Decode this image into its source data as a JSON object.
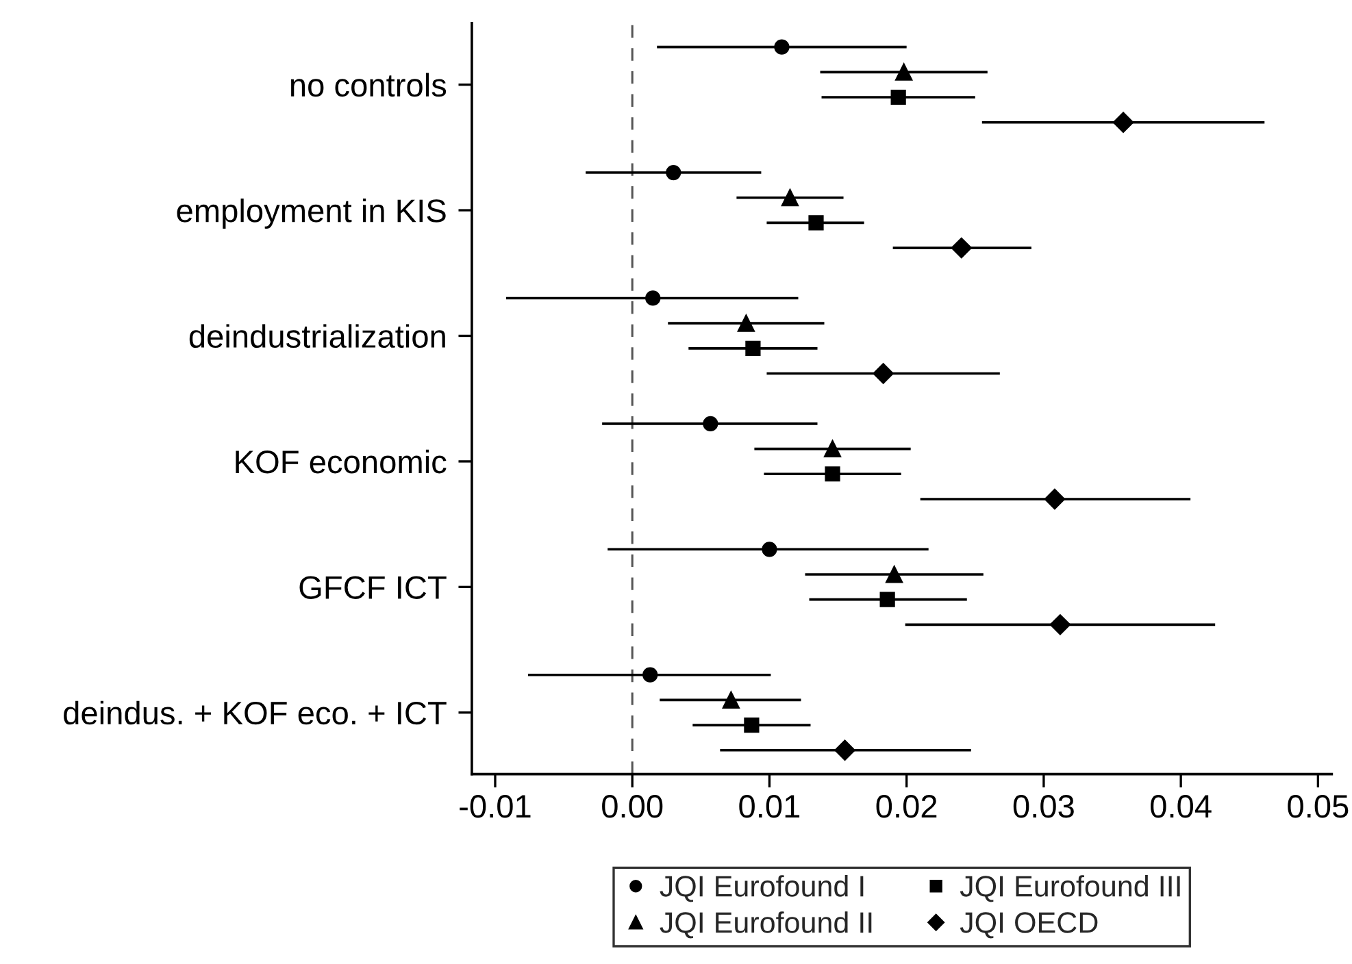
{
  "chart_data": {
    "type": "scatter",
    "orientation": "horizontal",
    "categories": [
      "no controls",
      "employment in KIS",
      "deindustrialization",
      "KOF economic",
      "GFCF ICT",
      "deindus. + KOF eco. + ICT"
    ],
    "series": [
      {
        "name": "JQI Eurofound I",
        "color": "#000000",
        "marker": "circle",
        "values": [
          0.0109,
          0.003,
          0.0015,
          0.0057,
          0.01,
          0.0013
        ],
        "errors": [
          [
            0.0018,
            0.02
          ],
          [
            -0.0034,
            0.0094
          ],
          [
            -0.0092,
            0.0121
          ],
          [
            -0.0022,
            0.0135
          ],
          [
            -0.0018,
            0.0216
          ],
          [
            -0.0076,
            0.0101
          ]
        ]
      },
      {
        "name": "JQI Eurofound II",
        "color": "#000000",
        "marker": "triangle",
        "values": [
          0.0198,
          0.0115,
          0.0083,
          0.0146,
          0.0191,
          0.0072
        ],
        "errors": [
          [
            0.0137,
            0.0259
          ],
          [
            0.0076,
            0.0154
          ],
          [
            0.0026,
            0.014
          ],
          [
            0.0089,
            0.0203
          ],
          [
            0.0126,
            0.0256
          ],
          [
            0.002,
            0.0123
          ]
        ]
      },
      {
        "name": "JQI Eurofound III",
        "color": "#000000",
        "marker": "square",
        "values": [
          0.0194,
          0.0134,
          0.0088,
          0.0146,
          0.0186,
          0.0087
        ],
        "errors": [
          [
            0.0138,
            0.025
          ],
          [
            0.0098,
            0.0169
          ],
          [
            0.0041,
            0.0135
          ],
          [
            0.0096,
            0.0196
          ],
          [
            0.0129,
            0.0244
          ],
          [
            0.0044,
            0.013
          ]
        ]
      },
      {
        "name": "JQI OECD",
        "color": "#000000",
        "marker": "diamond",
        "values": [
          0.0358,
          0.024,
          0.0183,
          0.0308,
          0.0312,
          0.0155
        ],
        "errors": [
          [
            0.0255,
            0.0461
          ],
          [
            0.019,
            0.0291
          ],
          [
            0.0098,
            0.0268
          ],
          [
            0.021,
            0.0407
          ],
          [
            0.0199,
            0.0425
          ],
          [
            0.0064,
            0.0247
          ]
        ]
      }
    ],
    "xlim": [
      -0.0117,
      0.051
    ],
    "xticks": [
      {
        "value": -0.01,
        "label": "-0.01"
      },
      {
        "value": 0.0,
        "label": "0.00"
      },
      {
        "value": 0.01,
        "label": "0.01"
      },
      {
        "value": 0.02,
        "label": "0.02"
      },
      {
        "value": 0.03,
        "label": "0.03"
      },
      {
        "value": 0.04,
        "label": "0.04"
      },
      {
        "value": 0.05,
        "label": "0.05"
      }
    ],
    "ref_lines": [
      {
        "axis": "x",
        "value": 0.0,
        "color": "#555555",
        "line_style": "dashed"
      }
    ],
    "legend": "bottom",
    "grid": false
  }
}
